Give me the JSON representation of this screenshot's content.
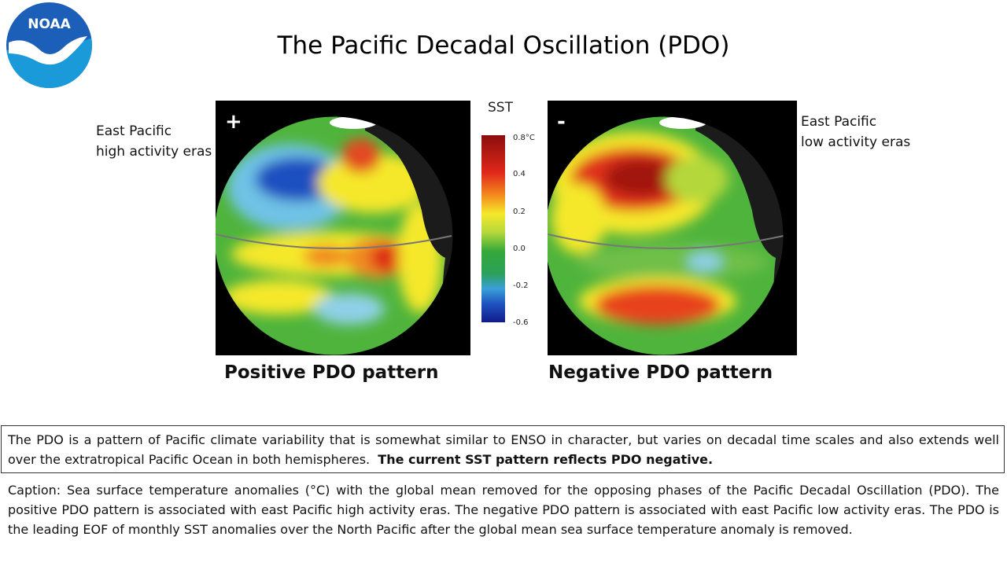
{
  "header": {
    "title": "The Pacific Decadal Oscillation (PDO)",
    "logo_text": "NOAA"
  },
  "panels": {
    "positive": {
      "sign": "+",
      "side_label_line1": "East Pacific",
      "side_label_line2": "high activity eras",
      "pattern_label": "Positive PDO pattern"
    },
    "negative": {
      "sign": "-",
      "side_label_line1": "East Pacific",
      "side_label_line2": "low activity eras",
      "pattern_label": "Negative PDO pattern"
    }
  },
  "color_scale": {
    "title": "SST",
    "ticks": [
      "0.8°C",
      "0.4",
      "0.2",
      "0.0",
      "-0.2",
      "-0.6"
    ],
    "colors": [
      "#8b0d0d",
      "#e0281a",
      "#f48a1c",
      "#f5e82a",
      "#b4d83a",
      "#35a83a",
      "#2ba15a",
      "#3aa0d8",
      "#1f54c0",
      "#111a8a"
    ]
  },
  "info": {
    "text_main": "The PDO is a pattern of Pacific climate variability that is somewhat similar to ENSO in character, but varies on decadal time scales and also extends well over the extratropical Pacific Ocean in both hemispheres.",
    "text_bold": "The current SST pattern reflects PDO negative."
  },
  "caption": {
    "text": "Caption: Sea surface temperature anomalies (°C) with the global mean removed for the opposing phases of the Pacific Decadal Oscillation (PDO). The positive PDO pattern is associated with east Pacific high activity eras. The negative PDO pattern is associated with east Pacific low activity eras. The PDO is the leading EOF of monthly SST anomalies over the North Pacific after the global mean sea surface temperature anomaly is removed."
  }
}
